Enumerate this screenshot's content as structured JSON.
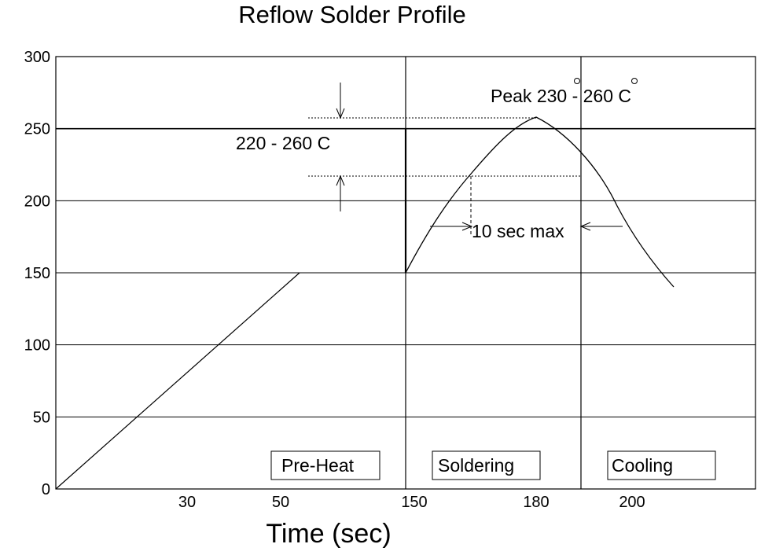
{
  "chart_data": {
    "type": "line",
    "title": "Reflow Solder Profile",
    "xlabel": "Time (sec)",
    "ylabel": "",
    "ylim": [
      0,
      300
    ],
    "y_ticks": [
      "0",
      "50",
      "100",
      "150",
      "200",
      "250",
      "300"
    ],
    "x_ticks": [
      "30",
      "50",
      "150",
      "180",
      "200"
    ],
    "grid": "horizontal",
    "series": [
      {
        "values": [
          {
            "x": "0",
            "y": 0
          },
          {
            "x": "50",
            "y": 150
          },
          {
            "x": "150",
            "y": 150
          },
          {
            "x": "180",
            "y": 258
          },
          {
            "x": "200",
            "y": 195
          },
          {
            "x": "end",
            "y": 140
          }
        ]
      }
    ],
    "zones": [
      {
        "label": "Pre-Heat"
      },
      {
        "label": "Soldering"
      },
      {
        "label": "Cooling"
      }
    ],
    "annotations": {
      "peak": "Peak 230 - 260 C",
      "range": "220 - 260 C",
      "duration": "10 sec max"
    }
  }
}
